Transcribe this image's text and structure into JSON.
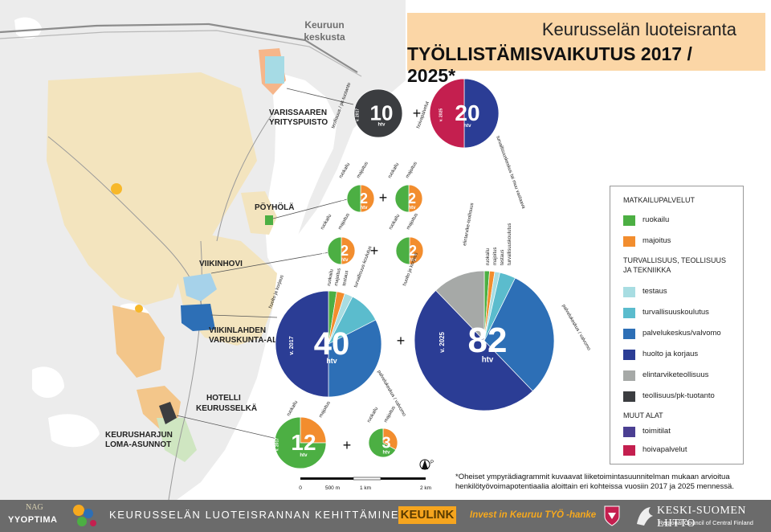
{
  "title": {
    "line1": "Keurusselän luoteisranta",
    "line2": "TYÖLLISTÄMISVAIKUTUS 2017 / 2025*"
  },
  "map_labels": {
    "town": [
      "Keuruun",
      "keskusta"
    ],
    "varissaari": [
      "VARISSAAREN",
      "YRITYSPUISTO"
    ],
    "poyhola": "PÖYHÖLÄ",
    "viikinhovi": "VIIKINHOVI",
    "viikinlahti": [
      "VIIKINLAHDEN",
      "VARUSKUNTA-ALUE"
    ],
    "hotelli": [
      "HOTELLI",
      "KEURUSSELKÄ"
    ],
    "keurusharju": [
      "KEURUSHARJUN",
      "LOMA-ASUNNOT"
    ]
  },
  "colors": {
    "ruokailu": "#4caf43",
    "majoitus": "#f28d2e",
    "testaus": "#a8dde2",
    "turvallisuuskoulutus": "#5bbccd",
    "palvelukeskus": "#2d6fb6",
    "huolto": "#2b3d95",
    "elintarvike": "#a6a9a7",
    "teollisuus": "#3b3d40",
    "toimitilat": "#4b3f92",
    "hoivapalvelut": "#c41f4f"
  },
  "charts": [
    {
      "id": "varissaari-2017",
      "year": "v. 2017",
      "value": "10",
      "unit": "htv",
      "slices": [
        [
          "teollisuus",
          1
        ]
      ],
      "labels": [
        "teollisuus / pk-tuotanto"
      ]
    },
    {
      "id": "varissaari-2025",
      "year": "v. 2025",
      "value": "20",
      "unit": "htv",
      "slices": [
        [
          "huolto",
          0.5
        ],
        [
          "hoivapalvelut",
          0.5
        ]
      ],
      "labels": [
        "turvallisuuskeskus tai muu vastaava",
        "hoivapalvelut"
      ]
    },
    {
      "id": "poyhola-2017",
      "year": "v. 2017",
      "value": "2",
      "unit": "htv",
      "slices": [
        [
          "majoitus",
          0.5
        ],
        [
          "ruokailu",
          0.5
        ]
      ],
      "labels": [
        "ruokailu",
        "majoitus"
      ]
    },
    {
      "id": "poyhola-2025",
      "year": "v. 2025",
      "value": "2",
      "unit": "htv",
      "slices": [
        [
          "majoitus",
          0.5
        ],
        [
          "ruokailu",
          0.5
        ]
      ],
      "labels": [
        "ruokailu",
        "majoitus"
      ]
    },
    {
      "id": "viikinhovi-2017",
      "year": "v. 2017",
      "value": "2",
      "unit": "htv",
      "slices": [
        [
          "majoitus",
          0.5
        ],
        [
          "ruokailu",
          0.5
        ]
      ],
      "labels": [
        "ruokailu",
        "majoitus"
      ]
    },
    {
      "id": "viikinhovi-2025",
      "year": "v. 2025",
      "value": "2",
      "unit": "htv",
      "slices": [
        [
          "majoitus",
          0.5
        ],
        [
          "ruokailu",
          0.5
        ]
      ],
      "labels": [
        "ruokailu",
        "majoitus"
      ]
    },
    {
      "id": "viikinlahti-2017",
      "year": "v. 2017",
      "value": "40",
      "unit": "htv",
      "slices": [
        [
          "ruokailu",
          0.025
        ],
        [
          "majoitus",
          0.025
        ],
        [
          "testaus",
          0.025
        ],
        [
          "turvallisuuskoulutus",
          0.1
        ],
        [
          "palvelukeskus",
          0.325
        ],
        [
          "huolto",
          0.5
        ]
      ],
      "labels": [
        "ruokailu",
        "majoitus",
        "testaus",
        "turvallisuus-koulutus",
        "palvelukeskus / valvomo",
        "huolto ja korjaus"
      ]
    },
    {
      "id": "viikinlahti-2025",
      "year": "v. 2025",
      "value": "82",
      "unit": "htv",
      "slices": [
        [
          "ruokailu",
          0.012
        ],
        [
          "majoitus",
          0.012
        ],
        [
          "testaus",
          0.012
        ],
        [
          "turvallisuuskoulutus",
          0.037
        ],
        [
          "palvelukeskus",
          0.305
        ],
        [
          "huolto",
          0.5
        ],
        [
          "elintarvike",
          0.122
        ]
      ],
      "labels": [
        "ruokailu",
        "majoitus",
        "testaus",
        "turvallisuuskoulutus",
        "palvelukeskus / valvomo",
        "huolto ja korjaus",
        "elintarvike-teollisuus"
      ]
    },
    {
      "id": "hotelli-2017",
      "year": "v. 2017",
      "value": "12",
      "unit": "htv",
      "slices": [
        [
          "majoitus",
          0.25
        ],
        [
          "ruokailu",
          0.75
        ]
      ],
      "labels": [
        "ruokailu",
        "majoitus"
      ]
    },
    {
      "id": "hotelli-2025",
      "year": "v. 2025",
      "value": "3",
      "unit": "htv",
      "slices": [
        [
          "majoitus",
          0.33
        ],
        [
          "ruokailu",
          0.67
        ]
      ],
      "labels": [
        "ruokailu",
        "majoitus"
      ]
    }
  ],
  "plus": "+",
  "legend": {
    "sections": [
      {
        "heading": "MATKAILUPALVELUT",
        "items": [
          {
            "key": "ruokailu",
            "label": "ruokailu"
          },
          {
            "key": "majoitus",
            "label": "majoitus"
          }
        ]
      },
      {
        "heading": "TURVALLISUUS, TEOLLISUUS JA TEKNIIKKA",
        "items": [
          {
            "key": "testaus",
            "label": "testaus"
          },
          {
            "key": "turvallisuuskoulutus",
            "label": "turvallisuuskoulutus"
          },
          {
            "key": "palvelukeskus",
            "label": "palvelukeskus/valvomo"
          },
          {
            "key": "huolto",
            "label": "huolto ja korjaus"
          },
          {
            "key": "elintarvike",
            "label": "elintarviketeollisuus"
          },
          {
            "key": "teollisuus",
            "label": "teollisuus/pk-tuotanto"
          }
        ]
      },
      {
        "heading": "MUUT ALAT",
        "items": [
          {
            "key": "toimitilat",
            "label": "toimitilat"
          },
          {
            "key": "hoivapalvelut",
            "label": "hoivapalvelut"
          }
        ]
      }
    ]
  },
  "scalebar": {
    "ticks": [
      "0",
      "500 m",
      "1 km",
      "2 km"
    ]
  },
  "north": "P",
  "footnote": "*Oheiset ympyrädiagrammit kuvaavat liiketoimintasuunnitelman mukaan arvioitua henkilötyövoimapotentiaalia aloittain eri kohteissa vuosiin 2017 ja 2025 mennessä.",
  "footer": {
    "nag": "NAG",
    "yyoptima": "YYOPTIMA",
    "project": "KEURUSSELÄN LUOTEISRANNAN KEHITTÄMINEN",
    "keulink": "KEULINK",
    "invest": "Invest in Keuruu TYÖ -hanke",
    "ksl": "KESKI-SUOMEN LIITTO",
    "ksl_sub": "Regional Council of Central Finland"
  }
}
